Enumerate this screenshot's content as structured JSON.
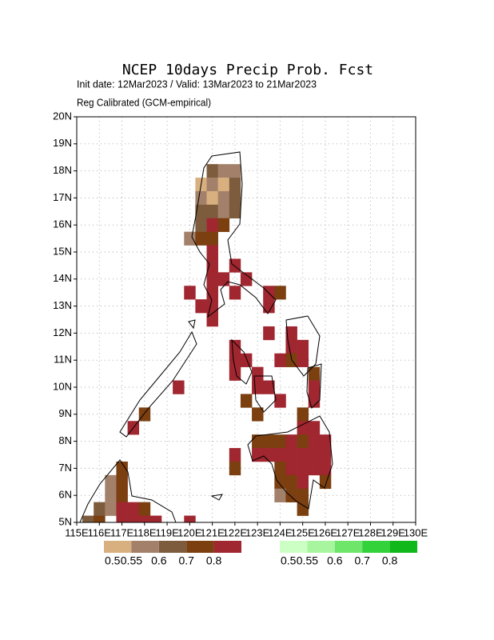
{
  "chart_data": {
    "type": "gridmap",
    "title": "NCEP 10days Precip Prob. Fcst",
    "subtitle": "Init date: 12Mar2023 / Valid: 13Mar2023 to 21Mar2023",
    "note": "Reg Calibrated (GCM-empirical)",
    "xlim": [
      115,
      130
    ],
    "ylim": [
      5,
      20
    ],
    "grid": true,
    "cell_size": 0.5,
    "xticks": [
      {
        "value": 115,
        "label": "115E"
      },
      {
        "value": 116,
        "label": "116E"
      },
      {
        "value": 117,
        "label": "117E"
      },
      {
        "value": 118,
        "label": "118E"
      },
      {
        "value": 119,
        "label": "119E"
      },
      {
        "value": 120,
        "label": "120E"
      },
      {
        "value": 121,
        "label": "121E"
      },
      {
        "value": 122,
        "label": "122E"
      },
      {
        "value": 123,
        "label": "123E"
      },
      {
        "value": 124,
        "label": "124E"
      },
      {
        "value": 125,
        "label": "125E"
      },
      {
        "value": 126,
        "label": "126E"
      },
      {
        "value": 127,
        "label": "127E"
      },
      {
        "value": 128,
        "label": "128E"
      },
      {
        "value": 129,
        "label": "129E"
      },
      {
        "value": 130,
        "label": "130E"
      }
    ],
    "yticks": [
      {
        "value": 5,
        "label": "5N"
      },
      {
        "value": 6,
        "label": "6N"
      },
      {
        "value": 7,
        "label": "7N"
      },
      {
        "value": 8,
        "label": "8N"
      },
      {
        "value": 9,
        "label": "9N"
      },
      {
        "value": 10,
        "label": "10N"
      },
      {
        "value": 11,
        "label": "11N"
      },
      {
        "value": 12,
        "label": "12N"
      },
      {
        "value": 13,
        "label": "13N"
      },
      {
        "value": 14,
        "label": "14N"
      },
      {
        "value": 15,
        "label": "15N"
      },
      {
        "value": 16,
        "label": "16N"
      },
      {
        "value": 17,
        "label": "17N"
      },
      {
        "value": 18,
        "label": "18N"
      },
      {
        "value": 19,
        "label": "19N"
      },
      {
        "value": 20,
        "label": "20N"
      }
    ],
    "legends": [
      {
        "colors": [
          "#d8b07f",
          "#a3806a",
          "#7d5c3e",
          "#7b3f10",
          "#a0262f"
        ],
        "labels": [
          0.5,
          0.55,
          0.6,
          0.7,
          0.8
        ]
      },
      {
        "colors": [
          "#ccffc4",
          "#a8f5a0",
          "#6ee66a",
          "#34d23a",
          "#10b81a"
        ],
        "labels": [
          0.5,
          0.55,
          0.6,
          0.7,
          0.8
        ]
      }
    ],
    "cells": {
      "lon": [
        121,
        121.5,
        122,
        120.5,
        121,
        121.5,
        122,
        120.5,
        121,
        121.5,
        122,
        120.5,
        121,
        121.5,
        122,
        120.5,
        121,
        121.5,
        120,
        120.5,
        121,
        121,
        121,
        122,
        121,
        121.5,
        122.5,
        120,
        121,
        122,
        123.5,
        124,
        120.5,
        121,
        123.5,
        121,
        123.5,
        124.5,
        122,
        124.5,
        125,
        122,
        122.5,
        124,
        124.5,
        125,
        122,
        123,
        125.5,
        119.5,
        123,
        123.5,
        125.5,
        122.5,
        124,
        125.5,
        118,
        123,
        125,
        117.5,
        125,
        125.5,
        123,
        123.5,
        124,
        124.5,
        125,
        125.5,
        126,
        122,
        123,
        123.5,
        124,
        124.5,
        125,
        125.5,
        126,
        117,
        122,
        124,
        124.5,
        125,
        125.5,
        126,
        116.5,
        117,
        124,
        124.5,
        125,
        126,
        116.5,
        117,
        124,
        124.5,
        125,
        116,
        116.5,
        117,
        117.5,
        118,
        125,
        115.5,
        116,
        117,
        117.5,
        118,
        118.5,
        120
      ],
      "lat": [
        18,
        18,
        18,
        17.5,
        17.5,
        17.5,
        17.5,
        17,
        17,
        17,
        17,
        16.5,
        16.5,
        16.5,
        16.5,
        16,
        16,
        16,
        15.5,
        15.5,
        15.5,
        15,
        14.5,
        14.5,
        14,
        14,
        14,
        13.5,
        13.5,
        13.5,
        13.5,
        13.5,
        13,
        13,
        13,
        12.5,
        12,
        12,
        11.5,
        11.5,
        11.5,
        11,
        11,
        11,
        11,
        11,
        10.5,
        10.5,
        10.5,
        10,
        10,
        10,
        10,
        9.5,
        9.5,
        9.5,
        9,
        9,
        9,
        8.5,
        8.5,
        8.5,
        8,
        8,
        8,
        8,
        8,
        8,
        8,
        7.5,
        7.5,
        7.5,
        7.5,
        7.5,
        7.5,
        7.5,
        7.5,
        7,
        7,
        7,
        7,
        7,
        7,
        7,
        6.5,
        6.5,
        6.5,
        6.5,
        6.5,
        6.5,
        6,
        6,
        6,
        6,
        6,
        5.5,
        5.5,
        5.5,
        5.5,
        5.5,
        5.5,
        5,
        5,
        5,
        5,
        5,
        5,
        5
      ],
      "values": [
        0.6,
        0.55,
        0.55,
        0.5,
        0.55,
        0.5,
        0.6,
        0.55,
        0.5,
        0.55,
        0.6,
        0.6,
        0.6,
        0.55,
        0.6,
        0.6,
        0.8,
        0.7,
        0.55,
        0.7,
        0.7,
        0.8,
        0.8,
        0.8,
        0.8,
        0.8,
        0.8,
        0.8,
        0.8,
        0.8,
        0.8,
        0.7,
        0.8,
        0.8,
        0.8,
        0.8,
        0.8,
        0.8,
        0.8,
        0.8,
        0.8,
        0.8,
        0.8,
        0.8,
        0.7,
        0.8,
        0.8,
        0.8,
        0.7,
        0.8,
        0.8,
        0.8,
        0.8,
        0.7,
        0.8,
        0.8,
        0.7,
        0.7,
        0.7,
        0.8,
        0.8,
        0.8,
        0.7,
        0.7,
        0.7,
        0.8,
        0.7,
        0.8,
        0.8,
        0.8,
        0.8,
        0.8,
        0.8,
        0.8,
        0.8,
        0.8,
        0.8,
        0.7,
        0.7,
        0.7,
        0.8,
        0.8,
        0.8,
        0.8,
        0.55,
        0.7,
        0.7,
        0.7,
        0.8,
        0.7,
        0.55,
        0.7,
        0.55,
        0.7,
        0.7,
        0.6,
        0.55,
        0.8,
        0.8,
        0.7,
        0.7,
        0.6,
        0.7,
        0.8,
        0.8,
        0.8,
        0.8,
        0.8
      ]
    }
  }
}
